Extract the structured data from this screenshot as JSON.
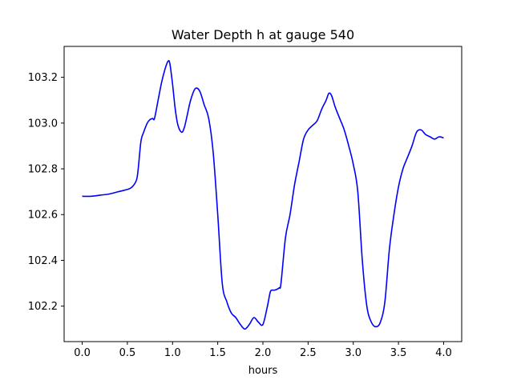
{
  "chart_data": {
    "type": "line",
    "title": "Water Depth h at gauge 540",
    "xlabel": "hours",
    "ylabel": "",
    "xlim": [
      -0.2,
      4.2
    ],
    "ylim": [
      102.045,
      103.335
    ],
    "xticks": [
      0.0,
      0.5,
      1.0,
      1.5,
      2.0,
      2.5,
      3.0,
      3.5,
      4.0
    ],
    "xtick_labels": [
      "0.0",
      "0.5",
      "1.0",
      "1.5",
      "2.0",
      "2.5",
      "3.0",
      "3.5",
      "4.0"
    ],
    "yticks": [
      102.2,
      102.4,
      102.6,
      102.8,
      103.0,
      103.2
    ],
    "ytick_labels": [
      "102.2",
      "102.4",
      "102.6",
      "102.8",
      "103.0",
      "103.2"
    ],
    "grid": false,
    "series": [
      {
        "color": "#0000ff",
        "x": [
          0.0,
          0.1,
          0.2,
          0.3,
          0.4,
          0.5,
          0.55,
          0.6,
          0.62,
          0.65,
          0.68,
          0.72,
          0.75,
          0.78,
          0.8,
          0.84,
          0.88,
          0.92,
          0.95,
          0.97,
          1.0,
          1.03,
          1.06,
          1.1,
          1.13,
          1.16,
          1.2,
          1.25,
          1.3,
          1.35,
          1.4,
          1.45,
          1.5,
          1.55,
          1.6,
          1.65,
          1.7,
          1.75,
          1.8,
          1.85,
          1.9,
          1.95,
          2.0,
          2.05,
          2.08,
          2.1,
          2.13,
          2.18,
          2.2,
          2.25,
          2.3,
          2.35,
          2.4,
          2.45,
          2.5,
          2.55,
          2.6,
          2.65,
          2.7,
          2.73,
          2.76,
          2.8,
          2.85,
          2.9,
          2.95,
          3.0,
          3.05,
          3.1,
          3.15,
          3.2,
          3.25,
          3.3,
          3.35,
          3.4,
          3.45,
          3.5,
          3.55,
          3.6,
          3.65,
          3.7,
          3.75,
          3.8,
          3.85,
          3.9,
          3.95,
          4.0
        ],
        "y": [
          102.68,
          102.68,
          102.685,
          102.69,
          102.7,
          102.71,
          102.72,
          102.75,
          102.8,
          102.92,
          102.96,
          103.0,
          103.015,
          103.02,
          103.02,
          103.1,
          103.18,
          103.24,
          103.27,
          103.26,
          103.17,
          103.06,
          102.99,
          102.96,
          102.98,
          103.03,
          103.1,
          103.15,
          103.14,
          103.08,
          103.02,
          102.87,
          102.6,
          102.3,
          102.22,
          102.17,
          102.15,
          102.12,
          102.1,
          102.12,
          102.15,
          102.13,
          102.12,
          102.2,
          102.26,
          102.27,
          102.27,
          102.28,
          102.3,
          102.5,
          102.6,
          102.73,
          102.83,
          102.93,
          102.97,
          102.99,
          103.01,
          103.06,
          103.1,
          103.13,
          103.12,
          103.07,
          103.02,
          102.97,
          102.9,
          102.82,
          102.7,
          102.4,
          102.2,
          102.13,
          102.11,
          102.13,
          102.22,
          102.45,
          102.6,
          102.72,
          102.8,
          102.85,
          102.9,
          102.96,
          102.97,
          102.95,
          102.94,
          102.93,
          102.94,
          102.935
        ]
      }
    ]
  }
}
